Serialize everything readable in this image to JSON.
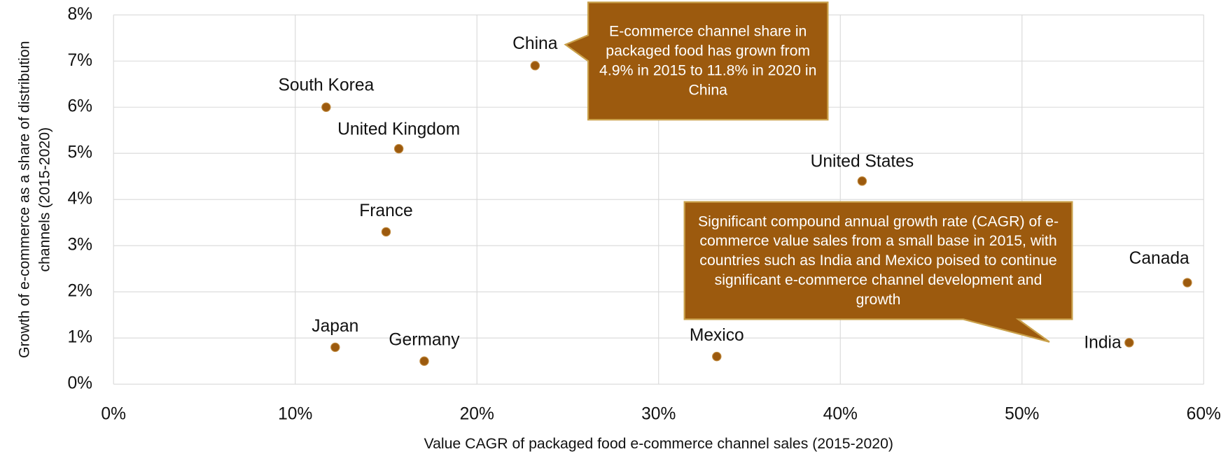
{
  "chart_data": {
    "type": "scatter",
    "x_label": "Value CAGR of packaged food e-commerce channel sales (2015-2020)",
    "y_label": "Growth of e-commerce as a share of distribution channels (2015-2020)",
    "labels": [
      "China",
      "South Korea",
      "United Kingdom",
      "France",
      "Japan",
      "Germany",
      "Mexico",
      "United States",
      "India",
      "Canada"
    ],
    "x": [
      23.2,
      11.7,
      15.7,
      15.0,
      12.2,
      17.1,
      33.2,
      41.2,
      55.9,
      59.1
    ],
    "values": [
      6.9,
      6.0,
      5.1,
      3.3,
      0.8,
      0.5,
      0.6,
      4.4,
      0.9,
      2.2
    ],
    "color": "#9c5a0e",
    "xlim": [
      0,
      60
    ],
    "ylim": [
      0,
      8
    ],
    "xticks": [
      {
        "value": 0,
        "label": "0%"
      },
      {
        "value": 10,
        "label": "10%"
      },
      {
        "value": 20,
        "label": "20%"
      },
      {
        "value": 30,
        "label": "30%"
      },
      {
        "value": 40,
        "label": "40%"
      },
      {
        "value": 50,
        "label": "50%"
      },
      {
        "value": 60,
        "label": "60%"
      }
    ],
    "yticks": [
      {
        "value": 0,
        "label": "0%"
      },
      {
        "value": 1,
        "label": "1%"
      },
      {
        "value": 2,
        "label": "2%"
      },
      {
        "value": 3,
        "label": "3%"
      },
      {
        "value": 4,
        "label": "4%"
      },
      {
        "value": 5,
        "label": "5%"
      },
      {
        "value": 6,
        "label": "6%"
      },
      {
        "value": 7,
        "label": "7%"
      },
      {
        "value": 8,
        "label": "8%"
      }
    ],
    "grid": true,
    "annotations": [
      "E-commerce channel share in packaged food has grown from 4.9% in 2015 to 11.8% in 2020 in China",
      "Significant compound annual growth rate (CAGR) of e-commerce value sales from a small base in 2015, with countries such as India and Mexico poised to continue significant e-commerce channel development and growth"
    ]
  }
}
